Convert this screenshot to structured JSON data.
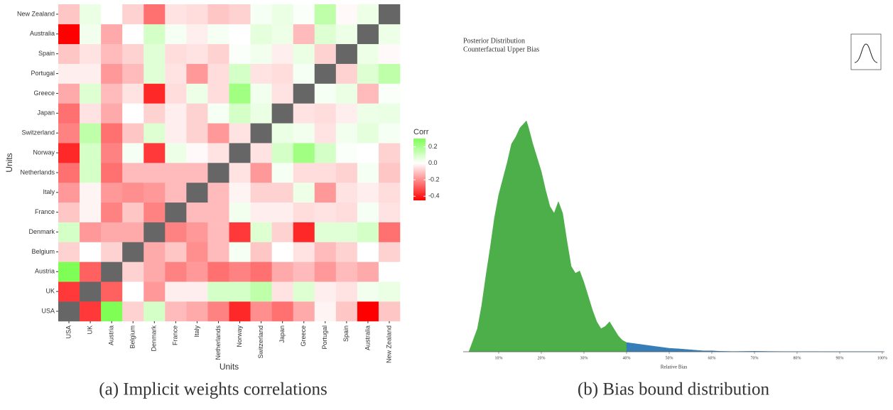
{
  "chart_data": [
    {
      "type": "heatmap",
      "caption": "(a) Implicit weights correlations",
      "xlabel": "Units",
      "ylabel": "Units",
      "legend_title": "Corr",
      "categories": [
        "USA",
        "UK",
        "Austria",
        "Belgium",
        "Denmark",
        "France",
        "Italy",
        "Netherlands",
        "Norway",
        "Switzerland",
        "Japan",
        "Greece",
        "Portugal",
        "Spain",
        "Australia",
        "New Zealand"
      ],
      "values": [
        [
          null,
          -0.35,
          0.3,
          -0.08,
          0.1,
          -0.12,
          -0.15,
          -0.22,
          -0.38,
          -0.2,
          -0.25,
          -0.15,
          -0.02,
          -0.1,
          -0.45,
          -0.1
        ],
        [
          -0.35,
          null,
          -0.28,
          0.0,
          -0.18,
          -0.03,
          -0.03,
          0.1,
          0.1,
          0.15,
          -0.05,
          0.08,
          -0.03,
          -0.05,
          0.03,
          0.05
        ],
        [
          0.3,
          -0.28,
          null,
          -0.08,
          -0.15,
          -0.22,
          -0.18,
          -0.25,
          -0.22,
          -0.25,
          -0.15,
          -0.12,
          -0.18,
          -0.12,
          -0.15,
          0.0
        ],
        [
          -0.08,
          0.0,
          -0.08,
          null,
          -0.15,
          -0.1,
          -0.2,
          -0.12,
          0.02,
          -0.1,
          0.0,
          -0.05,
          -0.12,
          -0.08,
          0.0,
          -0.08
        ],
        [
          0.1,
          -0.18,
          -0.15,
          -0.15,
          null,
          -0.22,
          -0.18,
          -0.12,
          -0.35,
          0.08,
          -0.08,
          -0.38,
          0.07,
          0.07,
          0.1,
          -0.25
        ],
        [
          -0.1,
          -0.02,
          -0.22,
          -0.1,
          -0.22,
          null,
          -0.12,
          -0.12,
          0.03,
          -0.03,
          -0.03,
          -0.06,
          -0.05,
          -0.06,
          0.02,
          -0.05
        ],
        [
          -0.18,
          -0.02,
          -0.18,
          -0.2,
          -0.18,
          -0.12,
          null,
          -0.12,
          -0.02,
          -0.08,
          -0.08,
          0.04,
          -0.18,
          -0.05,
          -0.03,
          -0.06
        ],
        [
          -0.25,
          0.1,
          -0.25,
          -0.12,
          -0.12,
          -0.12,
          -0.12,
          null,
          -0.05,
          -0.18,
          0.02,
          -0.06,
          -0.06,
          -0.08,
          0.02,
          -0.1
        ],
        [
          -0.38,
          0.1,
          -0.22,
          0.02,
          -0.35,
          0.04,
          -0.01,
          -0.05,
          null,
          -0.05,
          0.1,
          0.22,
          0.1,
          0.01,
          0.0,
          -0.08
        ],
        [
          -0.22,
          0.15,
          -0.25,
          -0.1,
          0.08,
          -0.03,
          -0.08,
          -0.18,
          -0.05,
          null,
          0.05,
          0.03,
          -0.05,
          0.03,
          0.06,
          0.02
        ],
        [
          -0.25,
          -0.05,
          -0.15,
          0.0,
          -0.08,
          -0.03,
          -0.08,
          0.02,
          0.1,
          0.05,
          null,
          -0.05,
          -0.06,
          -0.03,
          0.04,
          0.05
        ],
        [
          -0.15,
          0.08,
          -0.12,
          -0.05,
          -0.38,
          -0.06,
          0.04,
          -0.06,
          0.22,
          0.03,
          -0.05,
          null,
          0.02,
          0.05,
          -0.12,
          0.01
        ],
        [
          -0.03,
          -0.03,
          -0.18,
          -0.12,
          0.07,
          -0.05,
          -0.18,
          -0.06,
          0.1,
          -0.05,
          -0.06,
          0.02,
          null,
          -0.08,
          0.08,
          0.15
        ],
        [
          -0.1,
          -0.05,
          -0.12,
          -0.08,
          0.07,
          -0.06,
          -0.05,
          -0.08,
          0.01,
          0.03,
          -0.03,
          0.05,
          -0.08,
          null,
          0.04,
          -0.01
        ],
        [
          -0.45,
          0.03,
          -0.15,
          0.0,
          0.1,
          0.02,
          -0.03,
          0.02,
          0.0,
          0.06,
          0.04,
          -0.12,
          0.08,
          0.04,
          null,
          0.04
        ],
        [
          -0.1,
          0.05,
          0.0,
          -0.08,
          -0.25,
          -0.05,
          -0.06,
          -0.1,
          -0.08,
          0.02,
          0.05,
          0.01,
          0.15,
          -0.01,
          0.04,
          null
        ]
      ],
      "zlim": [
        -0.45,
        0.3
      ],
      "zticks": [
        0.2,
        {
          "value": 0,
          "label": "0.0"
        },
        -0.2,
        -0.4
      ],
      "low_color": "#ff0000",
      "mid_color": "#ffffff",
      "high_color": "#7fff55",
      "na_color": "#666666"
    },
    {
      "type": "area",
      "caption": "(b) Bias bound distribution",
      "title": "Posterior Distribution",
      "subtitle": "Counterfactual Upper Bias",
      "xlabel": "Relative Bias",
      "xlim": [
        0,
        100
      ],
      "ylim": [
        0,
        1
      ],
      "xticks": [
        {
          "value": 10,
          "label": "10%"
        },
        {
          "value": 20,
          "label": "20%"
        },
        {
          "value": 30,
          "label": "30%"
        },
        {
          "value": 40,
          "label": "40%"
        },
        {
          "value": 50,
          "label": "50%"
        },
        {
          "value": 60,
          "label": "60%"
        },
        {
          "value": 70,
          "label": "70%"
        },
        {
          "value": 80,
          "label": "80%"
        },
        {
          "value": 90,
          "label": "90%"
        },
        {
          "value": 100,
          "label": "100%"
        }
      ],
      "series": [
        {
          "color": "#4daf4a",
          "x": [
            3,
            5,
            6,
            7,
            8,
            9,
            10,
            11,
            12,
            13,
            14,
            15,
            16,
            16.5,
            17,
            18,
            19,
            20,
            21,
            22,
            23,
            24,
            25,
            26,
            27,
            28,
            29,
            30,
            31,
            32,
            33,
            34,
            35,
            36,
            37,
            38,
            39,
            40
          ],
          "values": [
            0,
            0.1,
            0.2,
            0.33,
            0.45,
            0.58,
            0.68,
            0.75,
            0.82,
            0.9,
            0.93,
            0.97,
            0.99,
            1.0,
            0.97,
            0.9,
            0.84,
            0.78,
            0.7,
            0.63,
            0.6,
            0.65,
            0.6,
            0.48,
            0.37,
            0.34,
            0.35,
            0.3,
            0.24,
            0.18,
            0.13,
            0.1,
            0.11,
            0.13,
            0.1,
            0.07,
            0.05,
            0.04
          ]
        },
        {
          "color": "#377eb8",
          "x": [
            40,
            42,
            44,
            46,
            48,
            50,
            52,
            54,
            56,
            58,
            60,
            62,
            65,
            70,
            75,
            80,
            90,
            100
          ],
          "values": [
            0.04,
            0.035,
            0.03,
            0.025,
            0.02,
            0.015,
            0.013,
            0.01,
            0.007,
            0.004,
            0.004,
            0.002,
            0.001,
            0.002,
            0.001,
            0.0005,
            0,
            0
          ]
        }
      ]
    }
  ]
}
